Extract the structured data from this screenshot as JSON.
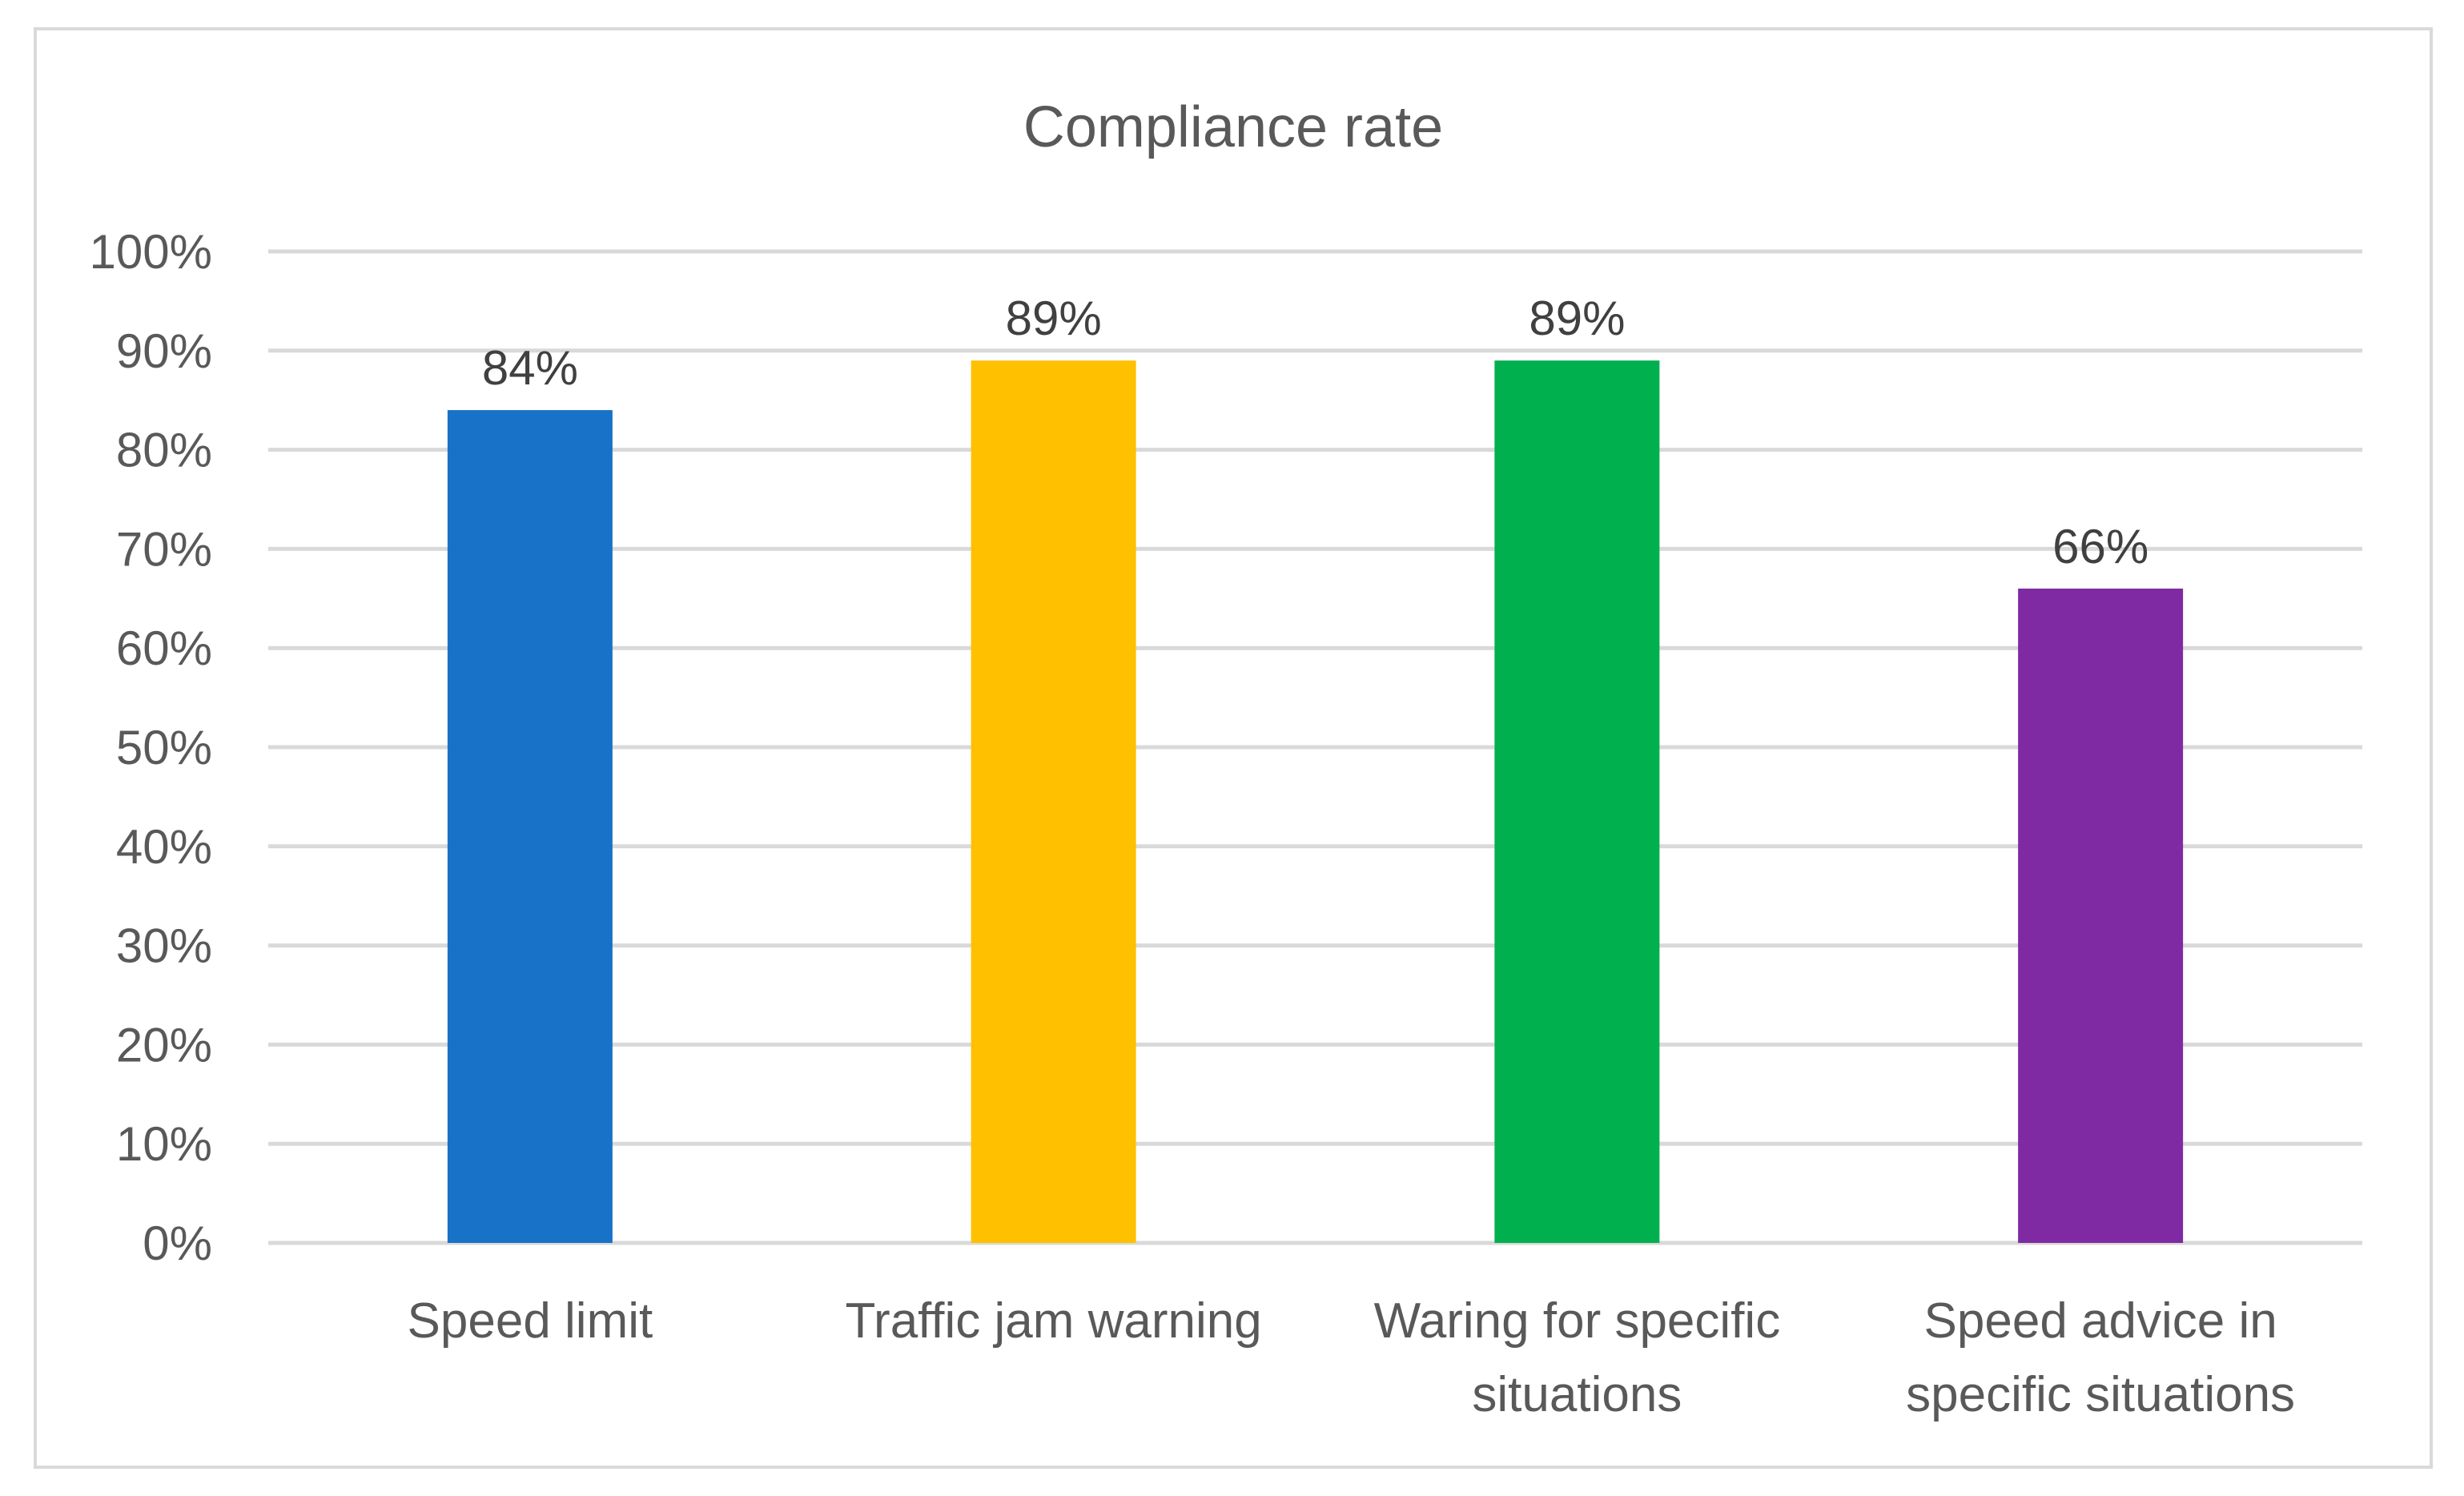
{
  "chart_data": {
    "type": "bar",
    "title": "Compliance rate",
    "xlabel": "",
    "ylabel": "",
    "categories": [
      [
        "Speed limit"
      ],
      [
        "Traffic jam warning"
      ],
      [
        "Waring for specific",
        "situations"
      ],
      [
        "Speed advice in",
        "specific situations"
      ]
    ],
    "values": [
      84,
      89,
      89,
      66
    ],
    "data_labels": [
      "84%",
      "89%",
      "89%",
      "66%"
    ],
    "colors": [
      "#1772c8",
      "#ffc000",
      "#00b04f",
      "#7f2aa2"
    ],
    "ylim": [
      0,
      100
    ],
    "yticks": [
      0,
      10,
      20,
      30,
      40,
      50,
      60,
      70,
      80,
      90,
      100
    ],
    "ytick_labels": [
      "0%",
      "10%",
      "20%",
      "30%",
      "40%",
      "50%",
      "60%",
      "70%",
      "80%",
      "90%",
      "100%"
    ],
    "grid": true,
    "legend": "none"
  },
  "colors": {
    "gridline": "#d9d9d9",
    "text": "#595959",
    "data_label": "#404040",
    "frame": "#d9d9d9"
  }
}
